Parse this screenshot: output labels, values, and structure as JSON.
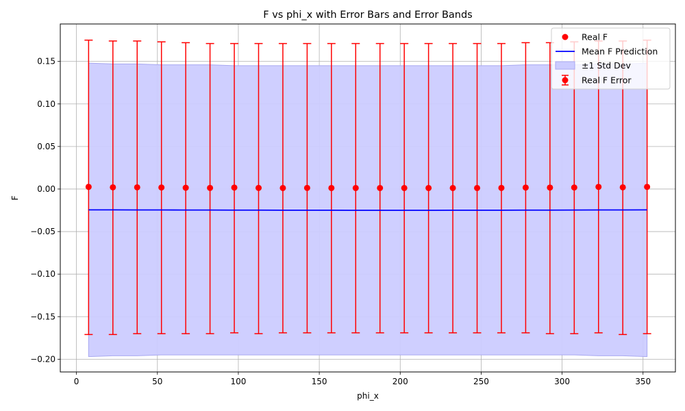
{
  "chart_data": {
    "type": "scatter",
    "title": "F vs phi_x with Error Bars and Error Bands",
    "xlabel": "phi_x",
    "ylabel": "F",
    "xlim": [
      -10,
      370
    ],
    "ylim": [
      -0.215,
      0.194
    ],
    "xticks": [
      0,
      50,
      100,
      150,
      200,
      250,
      300,
      350
    ],
    "yticks": [
      -0.2,
      -0.15,
      -0.1,
      -0.05,
      0.0,
      0.05,
      0.1,
      0.15
    ],
    "xtick_labels": [
      "0",
      "50",
      "100",
      "150",
      "200",
      "250",
      "300",
      "350"
    ],
    "ytick_labels": [
      "−0.20",
      "−0.15",
      "−0.10",
      "−0.05",
      "0.00",
      "0.05",
      "0.10",
      "0.15"
    ],
    "grid": true,
    "legend_position": "top-right",
    "x": [
      7.5,
      22.5,
      37.5,
      52.5,
      67.5,
      82.5,
      97.5,
      112.5,
      127.5,
      142.5,
      157.5,
      172.5,
      187.5,
      202.5,
      217.5,
      232.5,
      247.5,
      262.5,
      277.5,
      292.5,
      307.5,
      322.5,
      337.5,
      352.5
    ],
    "series": [
      {
        "name": "Real F",
        "kind": "points",
        "color": "#ff0000",
        "values": [
          0.0025,
          0.002,
          0.002,
          0.0018,
          0.0015,
          0.0013,
          0.0017,
          0.0013,
          0.0012,
          0.0013,
          0.0012,
          0.0012,
          0.0012,
          0.0012,
          0.0012,
          0.0012,
          0.0012,
          0.0013,
          0.0017,
          0.0017,
          0.0018,
          0.0025,
          0.002,
          0.0025
        ]
      },
      {
        "name": "Real F Error",
        "kind": "errorbar",
        "color": "#ff0000",
        "upper": [
          0.175,
          0.174,
          0.174,
          0.173,
          0.172,
          0.171,
          0.171,
          0.171,
          0.171,
          0.171,
          0.171,
          0.171,
          0.171,
          0.171,
          0.171,
          0.171,
          0.171,
          0.171,
          0.172,
          0.172,
          0.173,
          0.174,
          0.174,
          0.175
        ],
        "lower": [
          -0.171,
          -0.171,
          -0.17,
          -0.17,
          -0.17,
          -0.17,
          -0.169,
          -0.17,
          -0.169,
          -0.169,
          -0.169,
          -0.169,
          -0.169,
          -0.169,
          -0.169,
          -0.169,
          -0.169,
          -0.169,
          -0.169,
          -0.17,
          -0.17,
          -0.169,
          -0.171,
          -0.17
        ]
      },
      {
        "name": "Mean F Prediction",
        "kind": "line",
        "color": "#0000ff",
        "values": [
          -0.0245,
          -0.0245,
          -0.0246,
          -0.0246,
          -0.0247,
          -0.0247,
          -0.0248,
          -0.0248,
          -0.0249,
          -0.0249,
          -0.0249,
          -0.025,
          -0.025,
          -0.025,
          -0.025,
          -0.0249,
          -0.0249,
          -0.0249,
          -0.0248,
          -0.0248,
          -0.0247,
          -0.0246,
          -0.0246,
          -0.0245
        ]
      },
      {
        "name": "±1 Std Dev",
        "kind": "band",
        "color": "#ccccff",
        "edge_color": "#9999ee",
        "upper": [
          0.148,
          0.147,
          0.147,
          0.146,
          0.146,
          0.146,
          0.145,
          0.145,
          0.145,
          0.145,
          0.145,
          0.145,
          0.145,
          0.145,
          0.145,
          0.145,
          0.145,
          0.145,
          0.146,
          0.146,
          0.146,
          0.147,
          0.147,
          0.148
        ],
        "lower": [
          -0.197,
          -0.196,
          -0.196,
          -0.195,
          -0.195,
          -0.195,
          -0.195,
          -0.195,
          -0.195,
          -0.195,
          -0.195,
          -0.195,
          -0.195,
          -0.195,
          -0.195,
          -0.195,
          -0.195,
          -0.195,
          -0.195,
          -0.195,
          -0.195,
          -0.196,
          -0.196,
          -0.197
        ]
      }
    ],
    "legend": [
      {
        "label": "Real F",
        "marker": "dot"
      },
      {
        "label": "Mean F Prediction",
        "marker": "line"
      },
      {
        "label": "±1 Std Dev",
        "marker": "patch"
      },
      {
        "label": "Real F Error",
        "marker": "errorbar"
      }
    ],
    "colors": {
      "grid": "#b0b0b0",
      "axes": "#000000",
      "points": "#ff0000",
      "line": "#0000ff",
      "band_fill": "#ccccff",
      "band_edge": "#a8a8f0"
    }
  }
}
